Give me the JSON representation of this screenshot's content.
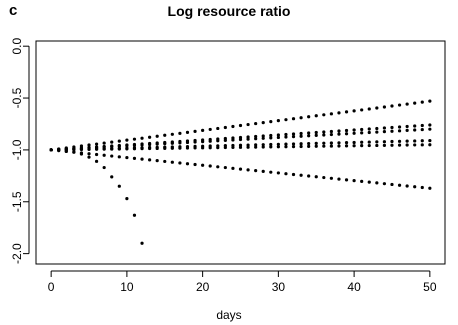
{
  "panel_label": "c",
  "chart_data": {
    "type": "scatter",
    "title": "Log resource ratio",
    "xlabel": "days",
    "ylabel": "",
    "xlim": [
      -2,
      52
    ],
    "ylim": [
      -2.1,
      0.05
    ],
    "x_ticks": [
      0,
      10,
      20,
      30,
      40,
      50
    ],
    "x_tick_labels": [
      "0",
      "10",
      "20",
      "30",
      "40",
      "50"
    ],
    "y_ticks": [
      0.0,
      -0.5,
      -1.0,
      -1.5,
      -2.0
    ],
    "y_tick_labels": [
      "0.0",
      "-0.5",
      "-1.0",
      "-1.5",
      "-2.0"
    ],
    "grid": false,
    "legend": "none",
    "marker_color": "#000000",
    "series": [
      {
        "x_start": 0,
        "x_end": 50,
        "y_start": -1.0,
        "y_end": -0.53,
        "count": 51
      },
      {
        "x_start": 0,
        "x_end": 50,
        "y_start": -1.0,
        "y_end": -0.76,
        "count": 51
      },
      {
        "x_start": 0,
        "x_end": 50,
        "y_start": -1.0,
        "y_end": -0.8,
        "count": 51
      },
      {
        "x_start": 0,
        "x_end": 50,
        "y_start": -1.0,
        "y_end": -0.91,
        "count": 51
      },
      {
        "x_start": 0,
        "x_end": 50,
        "y_start": -1.0,
        "y_end": -0.95,
        "count": 51
      },
      {
        "x_start": 0,
        "x_end": 50,
        "y_start": -1.0,
        "y_end": -1.37,
        "count": 51
      },
      {
        "x": [
          0,
          1,
          2,
          3,
          4,
          5,
          6,
          7,
          8,
          9,
          10,
          11,
          12
        ],
        "y": [
          -1.0,
          -1.0,
          -1.01,
          -1.02,
          -1.04,
          -1.07,
          -1.11,
          -1.17,
          -1.26,
          -1.35,
          -1.47,
          -1.63,
          -1.9
        ]
      }
    ]
  }
}
